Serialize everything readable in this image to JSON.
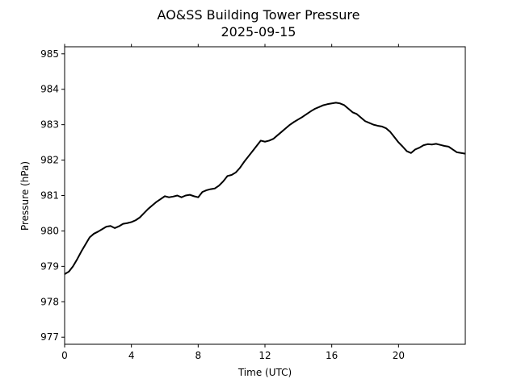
{
  "chart_data": {
    "type": "line",
    "title": "AO&SS Building Tower Pressure",
    "subtitle": "2025-09-15",
    "xlabel": "Time (UTC)",
    "ylabel": "Pressure (hPa)",
    "xlim": [
      0,
      24
    ],
    "ylim": [
      976.8,
      985.2
    ],
    "xticks": [
      0,
      4,
      8,
      12,
      16,
      20
    ],
    "yticks": [
      977,
      978,
      979,
      980,
      981,
      982,
      983,
      984,
      985
    ],
    "grid": false,
    "line_color": "#000000",
    "series": [
      {
        "x": [
          0,
          0.25,
          0.5,
          0.75,
          1.0,
          1.25,
          1.5,
          1.75,
          2.0,
          2.25,
          2.5,
          2.75,
          3.0,
          3.25,
          3.5,
          3.75,
          4.0,
          4.25,
          4.5,
          4.75,
          5.0,
          5.25,
          5.5,
          5.75,
          6.0,
          6.25,
          6.5,
          6.75,
          7.0,
          7.25,
          7.5,
          7.75,
          8.0,
          8.25,
          8.5,
          8.75,
          9.0,
          9.25,
          9.5,
          9.75,
          10.0,
          10.25,
          10.5,
          10.75,
          11.0,
          11.25,
          11.5,
          11.75,
          12.0,
          12.25,
          12.5,
          12.75,
          13.0,
          13.25,
          13.5,
          13.75,
          14.0,
          14.25,
          14.5,
          14.75,
          15.0,
          15.25,
          15.5,
          15.75,
          16.0,
          16.25,
          16.5,
          16.75,
          17.0,
          17.25,
          17.5,
          17.75,
          18.0,
          18.25,
          18.5,
          18.75,
          19.0,
          19.25,
          19.5,
          19.75,
          20.0,
          20.25,
          20.5,
          20.75,
          21.0,
          21.25,
          21.5,
          21.75,
          22.0,
          22.25,
          22.5,
          22.75,
          23.0,
          23.25,
          23.5,
          23.75,
          24.0
        ],
        "y": [
          978.78,
          978.85,
          979.0,
          979.2,
          979.42,
          979.62,
          979.82,
          979.92,
          979.98,
          980.05,
          980.12,
          980.14,
          980.08,
          980.13,
          980.2,
          980.22,
          980.25,
          980.3,
          980.38,
          980.5,
          980.62,
          980.72,
          980.82,
          980.9,
          980.98,
          980.95,
          980.97,
          981.0,
          980.95,
          981.0,
          981.02,
          980.98,
          980.95,
          981.1,
          981.15,
          981.18,
          981.2,
          981.28,
          981.4,
          981.55,
          981.58,
          981.65,
          981.78,
          981.95,
          982.1,
          982.25,
          982.4,
          982.55,
          982.52,
          982.55,
          982.6,
          982.7,
          982.8,
          982.9,
          983.0,
          983.08,
          983.15,
          983.22,
          983.3,
          983.38,
          983.45,
          983.5,
          983.55,
          983.58,
          983.6,
          983.62,
          983.6,
          983.55,
          983.45,
          983.35,
          983.3,
          983.2,
          983.1,
          983.05,
          983.0,
          982.97,
          982.95,
          982.9,
          982.8,
          982.65,
          982.5,
          982.38,
          982.25,
          982.2,
          982.3,
          982.35,
          982.42,
          982.45,
          982.44,
          982.46,
          982.43,
          982.4,
          982.38,
          982.3,
          982.22,
          982.2,
          982.18
        ]
      }
    ]
  }
}
